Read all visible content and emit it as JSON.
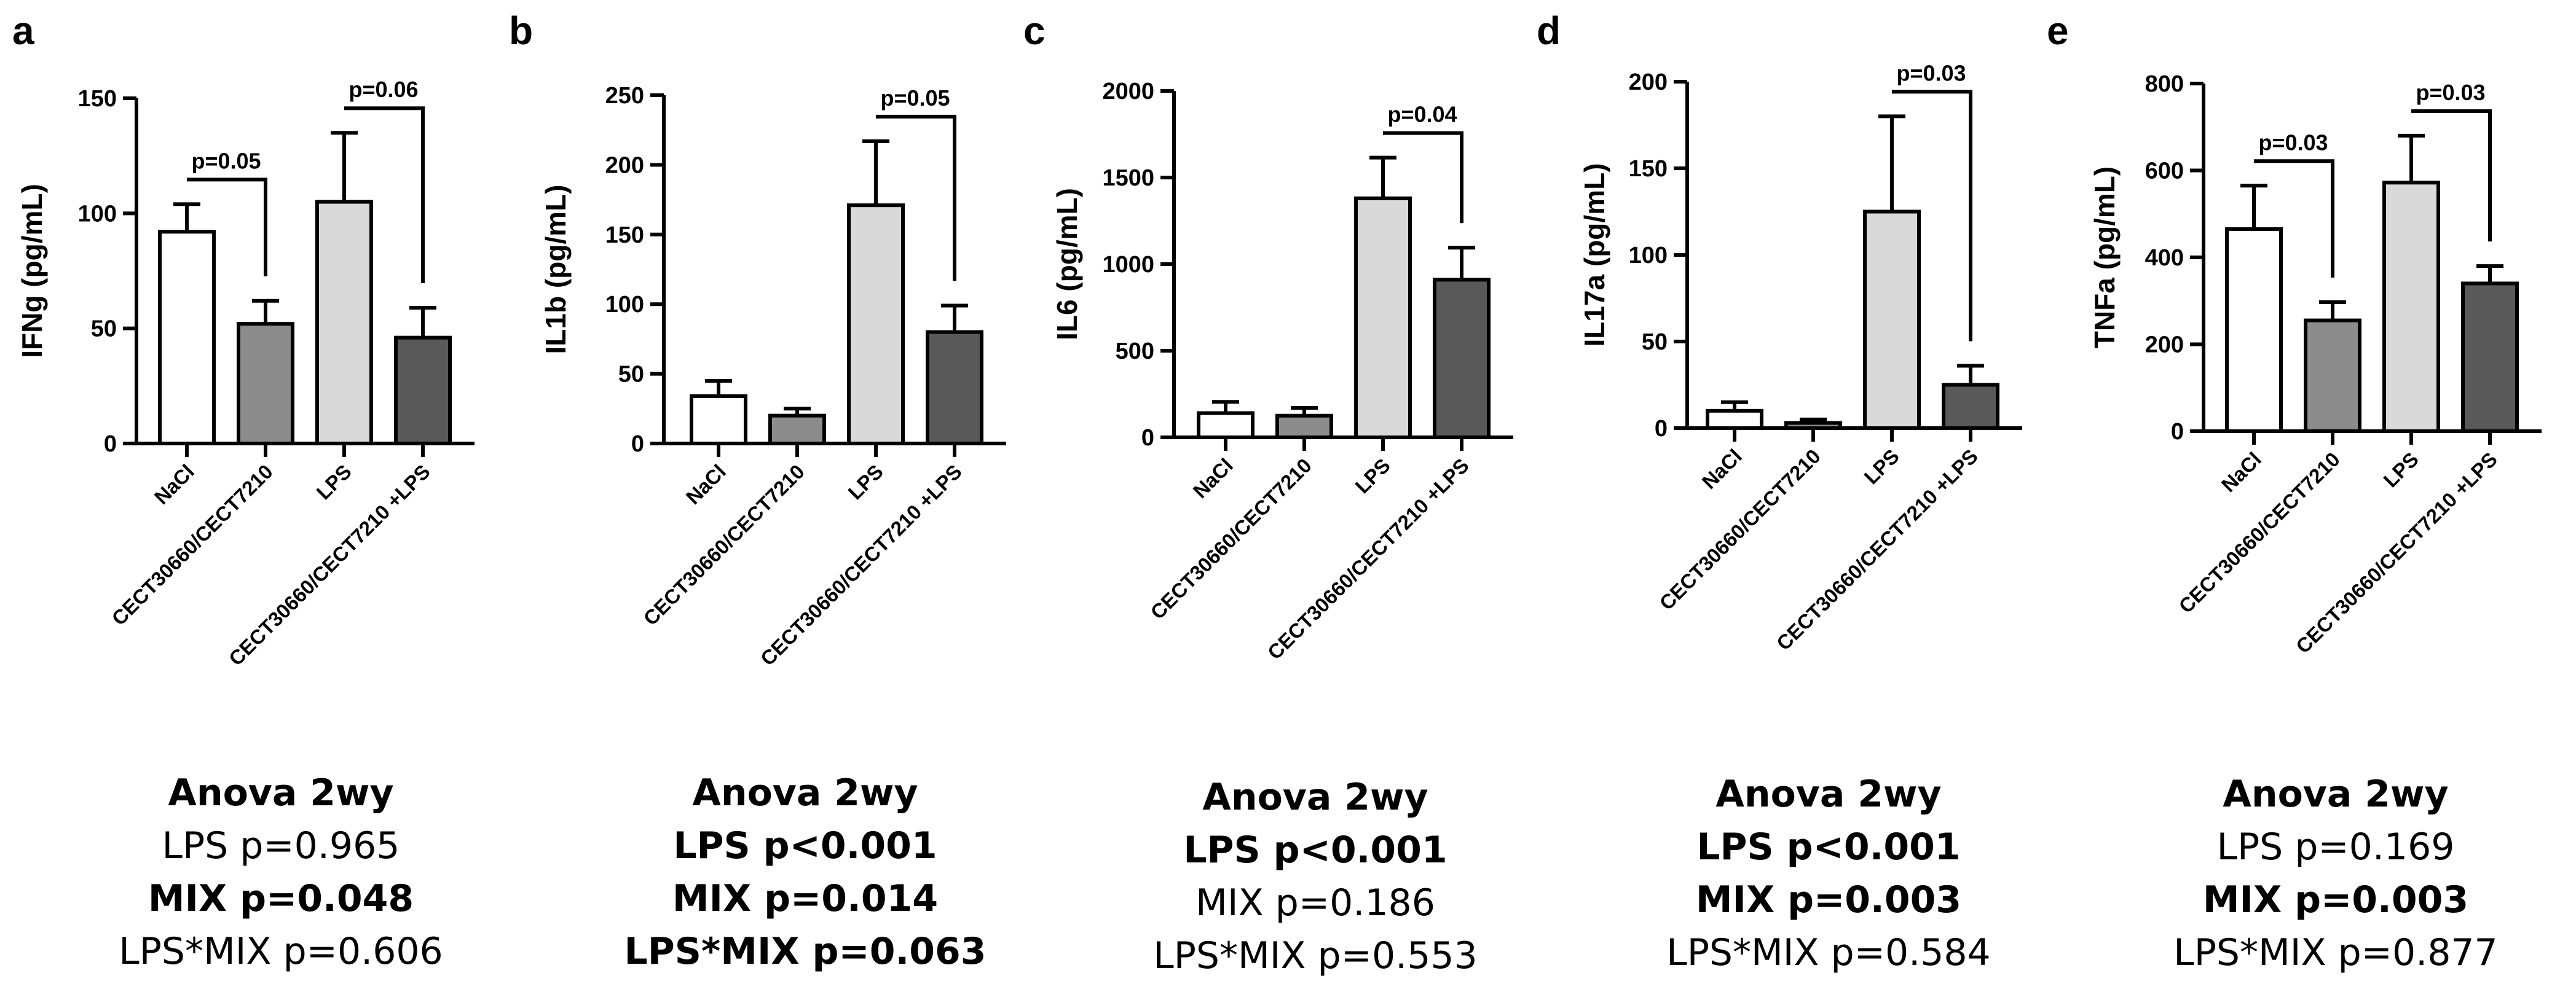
{
  "chart_data": [
    {
      "panel": "a",
      "type": "bar",
      "ylabel": "IFNg (pg/mL)",
      "ylim": [
        0,
        150
      ],
      "yticks": [
        0,
        50,
        100,
        150
      ],
      "categories": [
        "NaCl",
        "CECT30660/CECT7210",
        "LPS",
        "CECT30660/CECT7210 +LPS"
      ],
      "values": [
        92,
        52,
        105,
        46
      ],
      "errors": [
        12,
        10,
        30,
        13
      ],
      "colors": [
        "#ffffff",
        "#8c8c8c",
        "#d9d9d9",
        "#595959"
      ],
      "comparisons": [
        {
          "from": 0,
          "to": 1,
          "label": "p=0.05"
        },
        {
          "from": 2,
          "to": 3,
          "label": "p=0.06"
        }
      ],
      "anova": {
        "title": "Anova 2wy",
        "lines": [
          {
            "text": "LPS p=0.965",
            "bold": false
          },
          {
            "text": "MIX p=0.048",
            "bold": true
          },
          {
            "text": "LPS*MIX p=0.606",
            "bold": false
          }
        ]
      }
    },
    {
      "panel": "b",
      "type": "bar",
      "ylabel": "IL1b (pg/mL)",
      "ylim": [
        0,
        250
      ],
      "yticks": [
        0,
        50,
        100,
        150,
        200,
        250
      ],
      "categories": [
        "NaCl",
        "CECT30660/CECT7210",
        "LPS",
        "CECT30660/CECT7210 +LPS"
      ],
      "values": [
        34,
        20,
        171,
        80
      ],
      "errors": [
        11,
        5,
        46,
        19
      ],
      "colors": [
        "#ffffff",
        "#8c8c8c",
        "#d9d9d9",
        "#595959"
      ],
      "comparisons": [
        {
          "from": 2,
          "to": 3,
          "label": "p=0.05"
        }
      ],
      "anova": {
        "title": "Anova 2wy",
        "lines": [
          {
            "text": "LPS p<0.001",
            "bold": true
          },
          {
            "text": "MIX p=0.014",
            "bold": true
          },
          {
            "text": "LPS*MIX p=0.063",
            "bold": true
          }
        ]
      }
    },
    {
      "panel": "c",
      "type": "bar",
      "ylabel": "IL6 (pg/mL)",
      "ylim": [
        0,
        2000
      ],
      "yticks": [
        0,
        500,
        1000,
        1500,
        2000
      ],
      "categories": [
        "NaCl",
        "CECT30660/CECT7210",
        "LPS",
        "CECT30660/CECT7210 +LPS"
      ],
      "values": [
        140,
        125,
        1380,
        910
      ],
      "errors": [
        65,
        45,
        235,
        185
      ],
      "colors": [
        "#ffffff",
        "#8c8c8c",
        "#d9d9d9",
        "#595959"
      ],
      "comparisons": [
        {
          "from": 2,
          "to": 3,
          "label": "p=0.04"
        }
      ],
      "anova": {
        "title": "Anova 2wy",
        "lines": [
          {
            "text": "LPS p<0.001",
            "bold": true
          },
          {
            "text": "MIX p=0.186",
            "bold": false
          },
          {
            "text": "LPS*MIX p=0.553",
            "bold": false
          }
        ]
      }
    },
    {
      "panel": "d",
      "type": "bar",
      "ylabel": "IL17a (pg/mL)",
      "ylim": [
        0,
        200
      ],
      "yticks": [
        0,
        50,
        100,
        150,
        200
      ],
      "categories": [
        "NaCl",
        "CECT30660/CECT7210",
        "LPS",
        "CECT30660/CECT7210 +LPS"
      ],
      "values": [
        10,
        3,
        125,
        25
      ],
      "errors": [
        5,
        2,
        55,
        11
      ],
      "colors": [
        "#ffffff",
        "#8c8c8c",
        "#d9d9d9",
        "#595959"
      ],
      "comparisons": [
        {
          "from": 2,
          "to": 3,
          "label": "p=0.03"
        }
      ],
      "anova": {
        "title": "Anova 2wy",
        "lines": [
          {
            "text": "LPS p<0.001",
            "bold": true
          },
          {
            "text": "MIX p=0.003",
            "bold": true
          },
          {
            "text": "LPS*MIX p=0.584",
            "bold": false
          }
        ]
      }
    },
    {
      "panel": "e",
      "type": "bar",
      "ylabel": "TNFa (pg/mL)",
      "ylim": [
        0,
        800
      ],
      "yticks": [
        0,
        200,
        400,
        600,
        800
      ],
      "categories": [
        "NaCl",
        "CECT30660/CECT7210",
        "LPS",
        "CECT30660/CECT7210 +LPS"
      ],
      "values": [
        465,
        255,
        572,
        340
      ],
      "errors": [
        100,
        42,
        108,
        40
      ],
      "colors": [
        "#ffffff",
        "#8c8c8c",
        "#d9d9d9",
        "#595959"
      ],
      "comparisons": [
        {
          "from": 0,
          "to": 1,
          "label": "p=0.03"
        },
        {
          "from": 2,
          "to": 3,
          "label": "p=0.03"
        }
      ],
      "anova": {
        "title": "Anova 2wy",
        "lines": [
          {
            "text": "LPS p=0.169",
            "bold": false
          },
          {
            "text": "MIX p=0.003",
            "bold": true
          },
          {
            "text": "LPS*MIX p=0.877",
            "bold": false
          }
        ]
      }
    }
  ]
}
